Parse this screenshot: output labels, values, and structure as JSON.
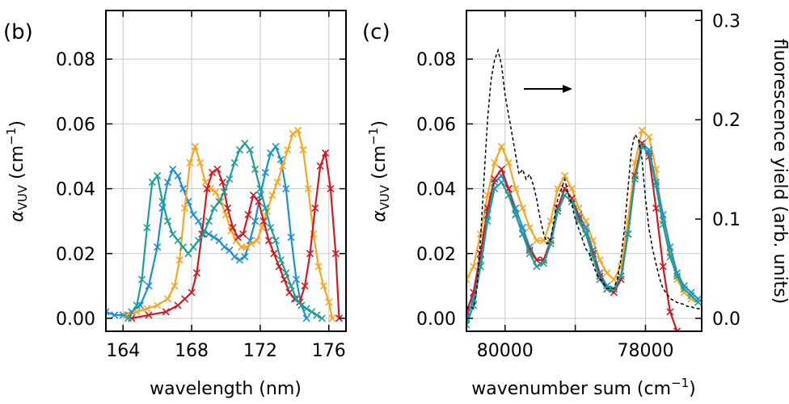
{
  "chart_data": [
    {
      "panel_label": "(b)",
      "type": "line",
      "xlabel": "wavelength (nm)",
      "ylabel_main": "α",
      "ylabel_sub": "VUV",
      "ylabel_unit": " (cm",
      "ylabel_exp": "−1",
      "ylabel_close": ")",
      "xlim": [
        163,
        177
      ],
      "ylim": [
        -0.004,
        0.095
      ],
      "xticks": [
        164,
        168,
        172,
        176
      ],
      "yticks": [
        0.0,
        0.02,
        0.04,
        0.06,
        0.08
      ],
      "ytick_labels": [
        "0.00",
        "0.02",
        "0.04",
        "0.06",
        "0.08"
      ],
      "grid": true,
      "marker": "x",
      "series": [
        {
          "color": "#1a8fd6",
          "x": [
            163.0,
            163.5,
            164.0,
            164.5,
            165.0,
            165.5,
            166.0,
            166.3,
            166.6,
            166.9,
            167.2,
            167.5,
            167.8,
            168.1,
            168.4,
            168.7,
            169.0,
            169.3,
            169.6,
            169.9,
            170.2,
            170.5,
            170.8,
            171.1,
            171.4,
            171.7,
            172.0,
            172.3,
            172.6,
            172.9,
            173.2,
            173.5,
            173.8,
            174.1,
            174.4,
            174.7
          ],
          "y": [
            0.002,
            0.001,
            0.001,
            0.002,
            0.004,
            0.01,
            0.022,
            0.034,
            0.042,
            0.046,
            0.044,
            0.04,
            0.036,
            0.032,
            0.03,
            0.027,
            0.026,
            0.025,
            0.024,
            0.022,
            0.021,
            0.019,
            0.018,
            0.019,
            0.024,
            0.03,
            0.038,
            0.045,
            0.051,
            0.053,
            0.049,
            0.04,
            0.025,
            0.012,
            0.004,
            0.0
          ]
        },
        {
          "color": "#f5a623",
          "x": [
            164.2,
            164.8,
            165.4,
            166.0,
            166.6,
            167.0,
            167.3,
            167.6,
            167.9,
            168.2,
            168.5,
            168.8,
            169.1,
            169.4,
            169.7,
            170.0,
            170.3,
            170.6,
            170.9,
            171.2,
            171.5,
            171.8,
            172.1,
            172.4,
            172.7,
            173.0,
            173.3,
            173.6,
            173.9,
            174.2,
            174.5,
            174.8,
            175.1,
            175.4,
            175.7,
            176.0,
            176.2
          ],
          "y": [
            0.001,
            0.002,
            0.003,
            0.004,
            0.006,
            0.01,
            0.018,
            0.034,
            0.048,
            0.053,
            0.048,
            0.042,
            0.04,
            0.039,
            0.036,
            0.032,
            0.027,
            0.024,
            0.022,
            0.022,
            0.023,
            0.024,
            0.028,
            0.033,
            0.038,
            0.042,
            0.047,
            0.052,
            0.057,
            0.058,
            0.052,
            0.04,
            0.026,
            0.016,
            0.01,
            0.005,
            0.0
          ]
        },
        {
          "color": "#cc1b22",
          "x": [
            164.5,
            165.5,
            166.5,
            167.2,
            167.6,
            168.0,
            168.3,
            168.6,
            168.9,
            169.2,
            169.5,
            169.8,
            170.1,
            170.4,
            170.7,
            171.0,
            171.3,
            171.6,
            171.9,
            172.2,
            172.5,
            172.8,
            173.1,
            173.4,
            173.7,
            174.0,
            174.3,
            174.6,
            174.9,
            175.2,
            175.5,
            175.8,
            176.1,
            176.4,
            176.6
          ],
          "y": [
            0.0,
            0.001,
            0.002,
            0.004,
            0.006,
            0.008,
            0.014,
            0.026,
            0.04,
            0.045,
            0.046,
            0.042,
            0.034,
            0.028,
            0.025,
            0.026,
            0.032,
            0.038,
            0.036,
            0.03,
            0.024,
            0.02,
            0.016,
            0.012,
            0.008,
            0.006,
            0.005,
            0.01,
            0.02,
            0.034,
            0.047,
            0.051,
            0.04,
            0.02,
            0.0
          ]
        },
        {
          "color": "#1f9e96",
          "x": [
            164.3,
            164.8,
            165.1,
            165.4,
            165.7,
            166.0,
            166.3,
            166.6,
            166.9,
            167.2,
            167.5,
            167.8,
            168.1,
            168.4,
            168.7,
            169.0,
            169.3,
            169.6,
            169.9,
            170.2,
            170.5,
            170.8,
            171.1,
            171.4,
            171.7,
            172.0,
            172.3,
            172.6,
            172.9,
            173.2,
            173.5,
            173.8,
            174.1,
            174.4,
            174.7,
            175.0,
            175.3,
            175.6
          ],
          "y": [
            0.0,
            0.004,
            0.012,
            0.028,
            0.042,
            0.044,
            0.036,
            0.03,
            0.026,
            0.024,
            0.022,
            0.02,
            0.022,
            0.024,
            0.026,
            0.03,
            0.034,
            0.036,
            0.039,
            0.043,
            0.048,
            0.052,
            0.054,
            0.052,
            0.046,
            0.04,
            0.034,
            0.028,
            0.024,
            0.018,
            0.014,
            0.01,
            0.006,
            0.004,
            0.003,
            0.002,
            0.001,
            0.0
          ]
        }
      ]
    },
    {
      "panel_label": "(c)",
      "type": "line",
      "xlabel_main": "wavenumber sum (cm",
      "xlabel_exp": "−1",
      "xlabel_close": ")",
      "ylabel_main": "α",
      "ylabel_sub": "VUV",
      "ylabel_unit": " (cm",
      "ylabel_exp": "−1",
      "ylabel_close": ")",
      "y2label": "fluorescence yield (arb. units)",
      "xlim": [
        80550,
        77200
      ],
      "ylim": [
        -0.004,
        0.095
      ],
      "y2lim": [
        -0.013,
        0.31
      ],
      "xticks": [
        80000,
        78000
      ],
      "xticks_minor": [
        79000
      ],
      "yticks": [
        0.0,
        0.02,
        0.04,
        0.06,
        0.08
      ],
      "ytick_labels": [
        "0.00",
        "0.02",
        "0.04",
        "0.06",
        "0.08"
      ],
      "y2ticks": [
        0.0,
        0.1,
        0.2,
        0.3
      ],
      "y2tick_labels": [
        "0.0",
        "0.1",
        "0.2",
        "0.3"
      ],
      "grid": true,
      "marker": "x",
      "annotation": "arrow pointing right (toward the fluorescence-yield axis)",
      "series": [
        {
          "color": "#f5a623",
          "x": [
            80550,
            80450,
            80350,
            80250,
            80150,
            80050,
            79950,
            79850,
            79750,
            79650,
            79550,
            79450,
            79350,
            79250,
            79150,
            79050,
            78950,
            78850,
            78750,
            78650,
            78550,
            78450,
            78350,
            78250,
            78150,
            78050,
            77950,
            77850,
            77750,
            77650,
            77550,
            77450,
            77350,
            77250
          ],
          "y": [
            0.012,
            0.016,
            0.026,
            0.038,
            0.048,
            0.053,
            0.048,
            0.04,
            0.034,
            0.028,
            0.024,
            0.024,
            0.03,
            0.04,
            0.044,
            0.04,
            0.034,
            0.03,
            0.024,
            0.018,
            0.014,
            0.012,
            0.016,
            0.03,
            0.048,
            0.058,
            0.056,
            0.046,
            0.03,
            0.02,
            0.012,
            0.008,
            0.006,
            0.005
          ]
        },
        {
          "color": "#1a8fd6",
          "x": [
            80550,
            80450,
            80350,
            80250,
            80150,
            80050,
            79950,
            79850,
            79750,
            79650,
            79550,
            79450,
            79350,
            79250,
            79150,
            79050,
            78950,
            78850,
            78750,
            78650,
            78550,
            78450,
            78350,
            78250,
            78150,
            78050,
            77950,
            77850,
            77750,
            77650,
            77550,
            77450,
            77350,
            77250
          ],
          "y": [
            0.0,
            0.006,
            0.018,
            0.032,
            0.042,
            0.044,
            0.04,
            0.034,
            0.028,
            0.022,
            0.018,
            0.018,
            0.024,
            0.034,
            0.04,
            0.037,
            0.032,
            0.028,
            0.021,
            0.014,
            0.01,
            0.009,
            0.013,
            0.026,
            0.044,
            0.054,
            0.052,
            0.042,
            0.032,
            0.022,
            0.014,
            0.01,
            0.008,
            0.006
          ]
        },
        {
          "color": "#cc1b22",
          "x": [
            80550,
            80450,
            80350,
            80250,
            80150,
            80050,
            79950,
            79850,
            79750,
            79650,
            79550,
            79450,
            79350,
            79250,
            79150,
            79050,
            78950,
            78850,
            78750,
            78650,
            78550,
            78450,
            78350,
            78250,
            78150,
            78050,
            77950,
            77850,
            77750,
            77650,
            77550
          ],
          "y": [
            0.002,
            0.008,
            0.02,
            0.034,
            0.043,
            0.046,
            0.04,
            0.032,
            0.026,
            0.021,
            0.018,
            0.018,
            0.024,
            0.034,
            0.04,
            0.037,
            0.031,
            0.026,
            0.02,
            0.013,
            0.009,
            0.008,
            0.012,
            0.026,
            0.044,
            0.054,
            0.05,
            0.034,
            0.016,
            0.002,
            -0.004
          ]
        },
        {
          "color": "#1f9e96",
          "x": [
            80550,
            80450,
            80350,
            80250,
            80150,
            80050,
            79950,
            79850,
            79750,
            79650,
            79550,
            79450,
            79350,
            79250,
            79150,
            79050,
            78950,
            78850,
            78750,
            78650,
            78550,
            78450,
            78350,
            78250,
            78150,
            78050,
            77950,
            77850,
            77750,
            77650,
            77550,
            77450,
            77350,
            77250
          ],
          "y": [
            -0.002,
            0.004,
            0.016,
            0.03,
            0.04,
            0.042,
            0.038,
            0.032,
            0.026,
            0.02,
            0.016,
            0.017,
            0.023,
            0.033,
            0.038,
            0.036,
            0.03,
            0.026,
            0.019,
            0.012,
            0.009,
            0.009,
            0.013,
            0.026,
            0.043,
            0.053,
            0.051,
            0.041,
            0.029,
            0.019,
            0.013,
            0.009,
            0.007,
            0.005
          ]
        },
        {
          "color": "#000000",
          "dashed": true,
          "axis": "y2",
          "x": [
            80550,
            80500,
            80450,
            80400,
            80350,
            80300,
            80250,
            80200,
            80150,
            80100,
            80050,
            80000,
            79950,
            79900,
            79850,
            79800,
            79750,
            79700,
            79650,
            79600,
            79550,
            79500,
            79450,
            79400,
            79350,
            79300,
            79250,
            79200,
            79150,
            79100,
            79050,
            79000,
            78950,
            78900,
            78850,
            78800,
            78750,
            78700,
            78650,
            78600,
            78550,
            78500,
            78450,
            78400,
            78350,
            78300,
            78250,
            78200,
            78150,
            78100,
            78050,
            78000,
            77950,
            77900,
            77850,
            77800,
            77750,
            77700,
            77650,
            77600,
            77550,
            77500,
            77450,
            77400,
            77350,
            77300,
            77250,
            77200
          ],
          "y": [
            0.01,
            0.012,
            0.01,
            0.03,
            0.08,
            0.14,
            0.2,
            0.24,
            0.26,
            0.27,
            0.255,
            0.225,
            0.205,
            0.185,
            0.165,
            0.145,
            0.15,
            0.14,
            0.145,
            0.135,
            0.12,
            0.1,
            0.085,
            0.075,
            0.08,
            0.1,
            0.12,
            0.13,
            0.14,
            0.125,
            0.115,
            0.1,
            0.09,
            0.08,
            0.07,
            0.065,
            0.055,
            0.045,
            0.04,
            0.035,
            0.03,
            0.03,
            0.03,
            0.04,
            0.06,
            0.09,
            0.13,
            0.17,
            0.185,
            0.18,
            0.16,
            0.12,
            0.09,
            0.07,
            0.055,
            0.04,
            0.03,
            0.025,
            0.02,
            0.018,
            0.016,
            0.015,
            0.014,
            0.012,
            0.012,
            0.01,
            0.01,
            0.009
          ]
        }
      ]
    }
  ]
}
